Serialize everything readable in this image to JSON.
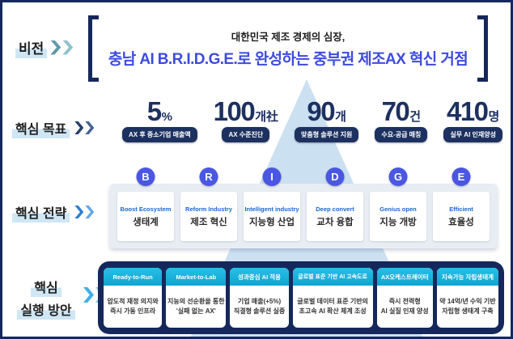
{
  "vision": {
    "label": "비전",
    "line1": "대한민국 제조 경제의 심장,",
    "line2": "충남 AI B.R.I.D.G.E.로 완성하는 중부권 제조AX 혁신 거점"
  },
  "goals": {
    "label": "핵심 목표",
    "items": [
      {
        "value": "5",
        "unit": "%",
        "badge": "AX 후 중소기업 매출액"
      },
      {
        "value": "100",
        "unit": "개社",
        "badge": "AX 수준진단"
      },
      {
        "value": "90",
        "unit": "개",
        "badge": "맞춤형 솔루션 지원"
      },
      {
        "value": "70",
        "unit": "건",
        "badge": "수요-공급 매칭"
      },
      {
        "value": "410",
        "unit": "명",
        "badge": "실무 AI 인재양성"
      }
    ]
  },
  "strategy": {
    "label": "핵심 전략",
    "items": [
      {
        "letter": "B",
        "en": "Boost Ecosystem",
        "ko": "생태계"
      },
      {
        "letter": "R",
        "en": "Reform Industry",
        "ko": "제조 혁신"
      },
      {
        "letter": "I",
        "en": "Intelligent industry",
        "ko": "지능형 산업"
      },
      {
        "letter": "D",
        "en": "Deep convert",
        "ko": "교차 융합"
      },
      {
        "letter": "G",
        "en": "Genius open",
        "ko": "지능 개방"
      },
      {
        "letter": "E",
        "en": "Efficient",
        "ko": "효율성"
      }
    ]
  },
  "actions": {
    "label_line1": "핵심",
    "label_line2": "실행 방안",
    "items": [
      {
        "title": "Ready-to-Run",
        "body1": "압도적 재정 의지와",
        "body2": "즉시 가동 인프라"
      },
      {
        "title": "Market-to-Lab",
        "body1": "지능의 선순환을 통한",
        "body2": "'실패 없는 AX'"
      },
      {
        "title": "성과중심 AI 적용",
        "body1": "기업 매출(+5%)",
        "body2": "직결형 솔루션 실증"
      },
      {
        "title": "글로벌 표준 기반 AI 고속도로",
        "body1": "글로벌 데이터 표준 기반의",
        "body2": "초고속 AI 확산 체계 조성"
      },
      {
        "title": "AX오케스트레이터",
        "body1": "즉시 전력형",
        "body2": "AI 실질 인재 양성"
      },
      {
        "title": "지속가능 자립생태계",
        "body1": "약 14억/년 수익 기반",
        "body2": "자립형 생태계 구축"
      }
    ]
  },
  "colors": {
    "navy": "#15275c",
    "number_navy": "#1d3160",
    "headline_blue": "#3d4be0",
    "strategy_circle_blue": "#4a57e2",
    "strategy_english_blue": "#1767d2",
    "action_header_cyan": "#14b0da",
    "label_highlight": "#cfe6f5",
    "triangle_light_blue": "#cbe0f1"
  }
}
